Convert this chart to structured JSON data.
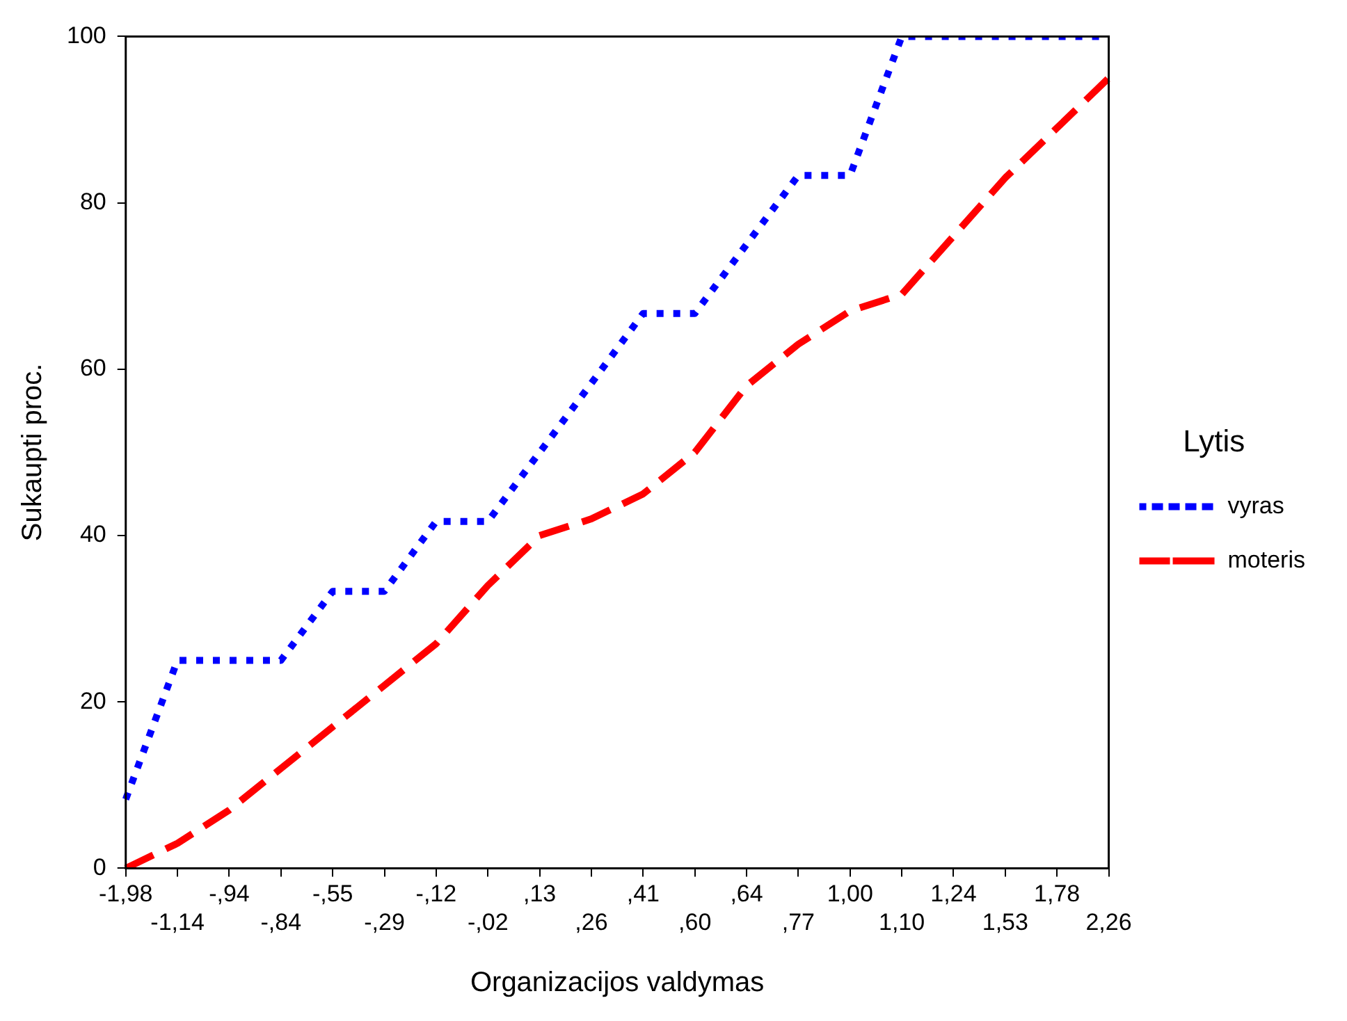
{
  "chart_data": {
    "type": "line",
    "xlabel": "Organizacijos valdymas",
    "ylabel": "Sukaupti proc.",
    "legend_title": "Lytis",
    "categories": [
      "-1,98",
      "-1,14",
      "-,94",
      "-,84",
      "-,55",
      "-,29",
      "-,12",
      "-,02",
      ",13",
      ",26",
      ",41",
      ",60",
      ",64",
      ",77",
      "1,00",
      "1,10",
      "1,24",
      "1,53",
      "1,78",
      "2,26"
    ],
    "series": [
      {
        "name": "vyras",
        "color": "#0000ff",
        "line_style": "dotted",
        "values": [
          8.3,
          25,
          25,
          25,
          33.3,
          33.3,
          41.7,
          41.7,
          50,
          58.3,
          66.7,
          66.7,
          75,
          83.3,
          83.3,
          100,
          100,
          100,
          100,
          100
        ]
      },
      {
        "name": "moteris",
        "color": "#ff0000",
        "line_style": "dashed",
        "values": [
          0,
          3,
          7,
          12,
          17,
          22,
          27,
          34,
          40,
          42,
          45,
          50,
          58,
          63,
          67,
          69,
          76,
          83,
          89,
          95
        ]
      }
    ],
    "ylim": [
      0,
      100
    ],
    "yticks": [
      0,
      20,
      40,
      60,
      80,
      100
    ],
    "grid": false,
    "legend": "right",
    "marker": "none"
  }
}
